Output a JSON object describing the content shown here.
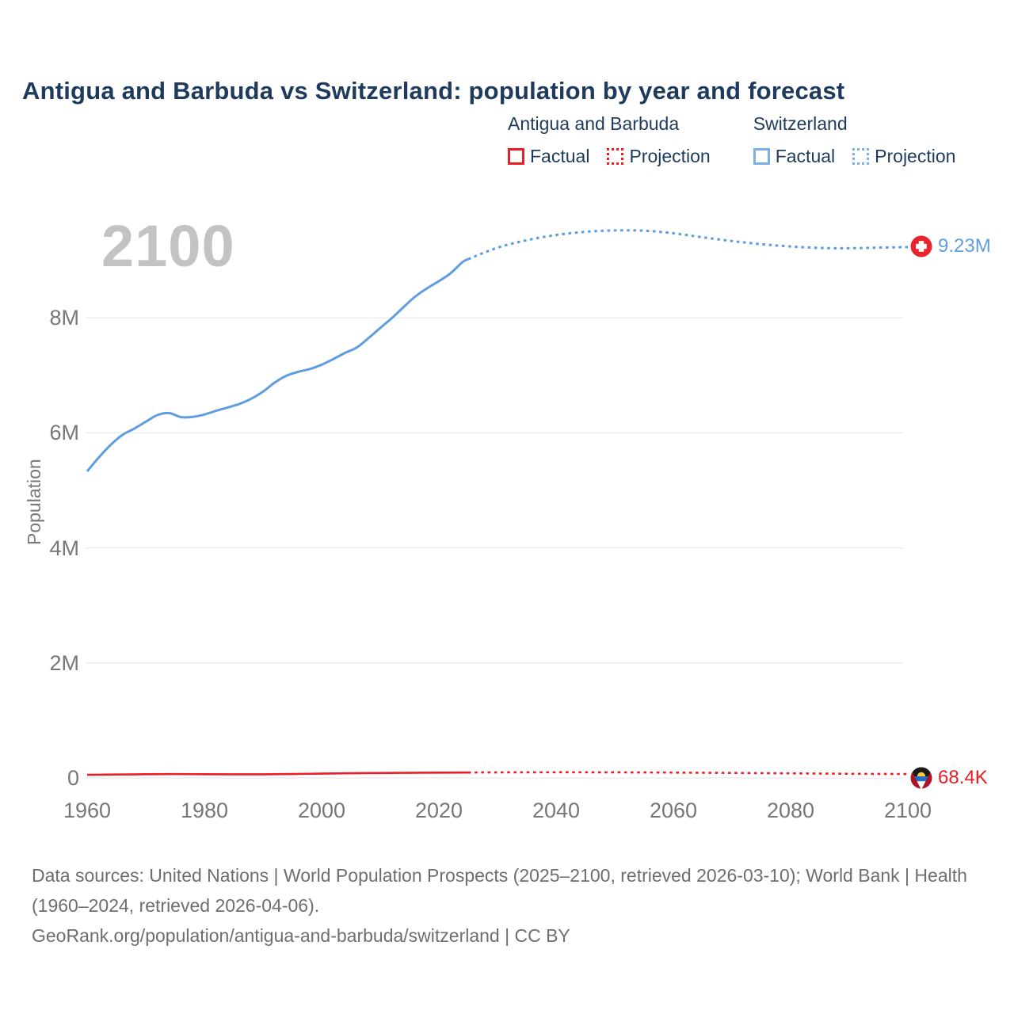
{
  "page": {
    "title": "Antigua and Barbuda vs Switzerland: population by year and forecast",
    "watermark": "2100",
    "footer": {
      "sources": "Data sources: United Nations | World Population Prospects (2025–2100, retrieved 2026-03-10); World Bank | Health (1960–2024, retrieved 2026-04-06).",
      "attribution": "GeoRank.org/population/antigua-and-barbuda/switzerland | CC BY"
    }
  },
  "colors": {
    "antigua_series": "#ee1c25",
    "switzerland_series": "#5f9de0",
    "heading_text": "#1e3a5c",
    "axis_text": "#75787b",
    "gridline": "#ebebeb",
    "watermark_text": "#c3c3c3",
    "footer_text": "#6e6e6e"
  },
  "legend": {
    "groups": [
      {
        "label": "Antigua and Barbuda",
        "items": [
          {
            "label": "Factual",
            "style": "solid",
            "color": "#ee1c25"
          },
          {
            "label": "Projection",
            "style": "dotted",
            "color": "#ee1c25"
          }
        ]
      },
      {
        "label": "Switzerland",
        "items": [
          {
            "label": "Factual",
            "style": "solid",
            "color": "#7aafe8"
          },
          {
            "label": "Projection",
            "style": "dotted",
            "color": "#7aafe8"
          }
        ]
      }
    ]
  },
  "chart_data": {
    "type": "line",
    "title": "Antigua and Barbuda vs Switzerland: population by year and forecast",
    "xlabel": "",
    "ylabel": "Population",
    "xlim": [
      1960,
      2100
    ],
    "ylim": [
      0,
      10200000
    ],
    "grid": "horizontal",
    "legend_position": "top-right",
    "x_ticks": [
      1960,
      1980,
      2000,
      2020,
      2040,
      2060,
      2080,
      2100
    ],
    "y_ticks": [
      {
        "value": 0,
        "label": "0"
      },
      {
        "value": 2000000,
        "label": "2M"
      },
      {
        "value": 4000000,
        "label": "4M"
      },
      {
        "value": 6000000,
        "label": "6M"
      },
      {
        "value": 8000000,
        "label": "8M"
      }
    ],
    "series": [
      {
        "id": "switzerland-factual",
        "name": "Switzerland Factual",
        "style": "solid",
        "color": "#5f9de0",
        "width": 3,
        "points": [
          [
            1960,
            5330000
          ],
          [
            1962,
            5573000
          ],
          [
            1964,
            5789000
          ],
          [
            1966,
            5962000
          ],
          [
            1968,
            6072000
          ],
          [
            1970,
            6193000
          ],
          [
            1972,
            6310000
          ],
          [
            1974,
            6343000
          ],
          [
            1976,
            6274000
          ],
          [
            1978,
            6278000
          ],
          [
            1980,
            6319000
          ],
          [
            1982,
            6384000
          ],
          [
            1984,
            6442000
          ],
          [
            1986,
            6504000
          ],
          [
            1988,
            6593000
          ],
          [
            1990,
            6716000
          ],
          [
            1992,
            6875000
          ],
          [
            1994,
            6994000
          ],
          [
            1996,
            7061000
          ],
          [
            1998,
            7110000
          ],
          [
            2000,
            7184000
          ],
          [
            2002,
            7284000
          ],
          [
            2004,
            7390000
          ],
          [
            2006,
            7484000
          ],
          [
            2008,
            7648000
          ],
          [
            2010,
            7824000
          ],
          [
            2012,
            7997000
          ],
          [
            2014,
            8189000
          ],
          [
            2016,
            8373000
          ],
          [
            2018,
            8514000
          ],
          [
            2020,
            8638000
          ],
          [
            2022,
            8775000
          ],
          [
            2024,
            8967000
          ],
          [
            2025,
            9020000
          ]
        ]
      },
      {
        "id": "switzerland-projection",
        "name": "Switzerland Projection",
        "style": "dotted",
        "color": "#5f9de0",
        "width": 3,
        "points": [
          [
            2025,
            9020000
          ],
          [
            2030,
            9220000
          ],
          [
            2035,
            9350000
          ],
          [
            2040,
            9440000
          ],
          [
            2045,
            9495000
          ],
          [
            2050,
            9520000
          ],
          [
            2055,
            9515000
          ],
          [
            2060,
            9470000
          ],
          [
            2065,
            9400000
          ],
          [
            2070,
            9335000
          ],
          [
            2075,
            9280000
          ],
          [
            2080,
            9240000
          ],
          [
            2085,
            9215000
          ],
          [
            2090,
            9210000
          ],
          [
            2095,
            9220000
          ],
          [
            2100,
            9230000
          ]
        ]
      },
      {
        "id": "antigua-and-barbuda-factual",
        "name": "Antigua and Barbuda Factual",
        "style": "solid",
        "color": "#ee1c25",
        "width": 2.6,
        "points": [
          [
            1960,
            54700
          ],
          [
            1965,
            59100
          ],
          [
            1970,
            64500
          ],
          [
            1975,
            67000
          ],
          [
            1980,
            64300
          ],
          [
            1985,
            62600
          ],
          [
            1990,
            63300
          ],
          [
            1995,
            68300
          ],
          [
            2000,
            75100
          ],
          [
            2005,
            81500
          ],
          [
            2010,
            85700
          ],
          [
            2015,
            89200
          ],
          [
            2020,
            92100
          ],
          [
            2024,
            93800
          ],
          [
            2025,
            94100
          ]
        ]
      },
      {
        "id": "antigua-and-barbuda-projection",
        "name": "Antigua and Barbuda Projection",
        "style": "dotted",
        "color": "#ee1c25",
        "width": 2.6,
        "points": [
          [
            2025,
            94100
          ],
          [
            2030,
            96200
          ],
          [
            2035,
            97600
          ],
          [
            2040,
            98300
          ],
          [
            2045,
            98100
          ],
          [
            2050,
            97000
          ],
          [
            2055,
            95200
          ],
          [
            2060,
            92800
          ],
          [
            2065,
            89900
          ],
          [
            2070,
            86600
          ],
          [
            2075,
            83100
          ],
          [
            2080,
            79500
          ],
          [
            2085,
            75800
          ],
          [
            2090,
            72200
          ],
          [
            2095,
            70000
          ],
          [
            2100,
            68400
          ]
        ]
      }
    ],
    "end_markers": [
      {
        "series": "Switzerland",
        "flag": "switzerland-flag",
        "label": "9.23M",
        "value": 9230000,
        "year": 2100
      },
      {
        "series": "Antigua and Barbuda",
        "flag": "antigua-and-barbuda-flag",
        "label": "68.4K",
        "value": 68400,
        "year": 2100
      }
    ]
  }
}
